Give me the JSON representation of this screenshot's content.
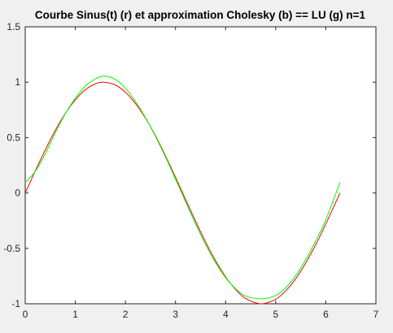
{
  "figure": {
    "background": "#f0f0f0",
    "axes_background": "#ffffff"
  },
  "chart_data": {
    "type": "line",
    "title": "Courbe Sinus(t) (r) et approximation Cholesky (b) == LU (g) n=1",
    "xlabel": "",
    "ylabel": "",
    "xlim": [
      0,
      7
    ],
    "ylim": [
      -1,
      1.5
    ],
    "xticks": [
      0,
      1,
      2,
      3,
      4,
      5,
      6,
      7
    ],
    "xtick_labels": [
      "0",
      "1",
      "2",
      "3",
      "4",
      "5",
      "6",
      "7"
    ],
    "yticks": [
      -1,
      -0.5,
      0,
      0.5,
      1,
      1.5
    ],
    "ytick_labels": [
      "-1",
      "-0.5",
      "0",
      "0.5",
      "1",
      "1.5"
    ],
    "grid": false,
    "legend": null,
    "series": [
      {
        "name": "Sinus(t)",
        "color": "#ff0000",
        "x": [
          0,
          0.2,
          0.4,
          0.6,
          0.8,
          1.0,
          1.2,
          1.4,
          1.5708,
          1.8,
          2.0,
          2.2,
          2.4,
          2.6,
          2.8,
          3.0,
          3.1416,
          3.4,
          3.6,
          3.8,
          4.0,
          4.2,
          4.4,
          4.7124,
          5.0,
          5.2,
          5.4,
          5.6,
          5.8,
          6.0,
          6.2832
        ],
        "y": [
          0,
          0.199,
          0.389,
          0.565,
          0.717,
          0.841,
          0.932,
          0.985,
          1.0,
          0.974,
          0.909,
          0.808,
          0.675,
          0.516,
          0.335,
          0.141,
          0,
          -0.256,
          -0.443,
          -0.612,
          -0.757,
          -0.872,
          -0.952,
          -1.0,
          -0.959,
          -0.883,
          -0.773,
          -0.631,
          -0.465,
          -0.279,
          0
        ]
      },
      {
        "name": "Cholesky / LU approximation",
        "color": "#00ff00",
        "x": [
          0,
          0.2,
          0.4,
          0.6,
          0.8,
          1.0,
          1.2,
          1.4,
          1.5708,
          1.8,
          2.0,
          2.2,
          2.4,
          2.6,
          2.8,
          3.0,
          3.1416,
          3.4,
          3.6,
          3.8,
          4.0,
          4.2,
          4.4,
          4.7124,
          5.0,
          5.2,
          5.4,
          5.6,
          5.8,
          6.0,
          6.2832
        ],
        "y": [
          0.095,
          0.195,
          0.355,
          0.545,
          0.715,
          0.855,
          0.965,
          1.03,
          1.055,
          1.025,
          0.945,
          0.825,
          0.68,
          0.51,
          0.325,
          0.125,
          -0.02,
          -0.28,
          -0.465,
          -0.63,
          -0.765,
          -0.865,
          -0.93,
          -0.955,
          -0.925,
          -0.855,
          -0.745,
          -0.6,
          -0.43,
          -0.24,
          0.095
        ]
      }
    ]
  }
}
